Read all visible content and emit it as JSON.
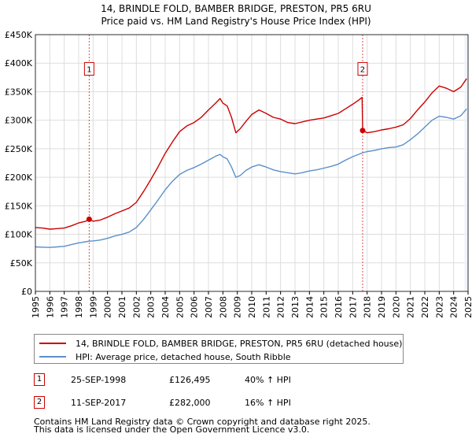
{
  "title": {
    "line1": "14, BRINDLE FOLD, BAMBER BRIDGE, PRESTON, PR5 6RU",
    "line2": "Price paid vs. HM Land Registry's House Price Index (HPI)"
  },
  "chart_data": {
    "type": "line",
    "title": "14, BRINDLE FOLD, BAMBER BRIDGE, PRESTON, PR5 6RU — Price paid vs. HM Land Registry's House Price Index (HPI)",
    "xlabel": "",
    "ylabel": "",
    "xlim": [
      1995,
      2025
    ],
    "ylim": [
      0,
      450000
    ],
    "grid": true,
    "x_ticks": [
      "1995",
      "1996",
      "1997",
      "1998",
      "1999",
      "2000",
      "2001",
      "2002",
      "2003",
      "2004",
      "2005",
      "2006",
      "2007",
      "2008",
      "2009",
      "2010",
      "2011",
      "2012",
      "2013",
      "2014",
      "2015",
      "2016",
      "2017",
      "2018",
      "2019",
      "2020",
      "2021",
      "2022",
      "2023",
      "2024",
      "2025"
    ],
    "y_ticks": [
      {
        "value": 0,
        "label": "£0"
      },
      {
        "value": 50000,
        "label": "£50K"
      },
      {
        "value": 100000,
        "label": "£100K"
      },
      {
        "value": 150000,
        "label": "£150K"
      },
      {
        "value": 200000,
        "label": "£200K"
      },
      {
        "value": 250000,
        "label": "£250K"
      },
      {
        "value": 300000,
        "label": "£300K"
      },
      {
        "value": 350000,
        "label": "£350K"
      },
      {
        "value": 400000,
        "label": "£400K"
      },
      {
        "value": 450000,
        "label": "£450K"
      }
    ],
    "series": [
      {
        "name": "14, BRINDLE FOLD, BAMBER BRIDGE, PRESTON, PR5 6RU (detached house)",
        "color": "#cc0000",
        "points": [
          [
            1995.0,
            112000
          ],
          [
            1995.5,
            111000
          ],
          [
            1996.0,
            109000
          ],
          [
            1996.5,
            110000
          ],
          [
            1997.0,
            111000
          ],
          [
            1997.5,
            115000
          ],
          [
            1998.0,
            120000
          ],
          [
            1998.5,
            123000
          ],
          [
            1998.73,
            126495
          ],
          [
            1999.0,
            123000
          ],
          [
            1999.5,
            125000
          ],
          [
            2000.0,
            130000
          ],
          [
            2000.5,
            136000
          ],
          [
            2001.0,
            141000
          ],
          [
            2001.5,
            146000
          ],
          [
            2002.0,
            156000
          ],
          [
            2002.5,
            175000
          ],
          [
            2003.0,
            196000
          ],
          [
            2003.5,
            218000
          ],
          [
            2004.0,
            242000
          ],
          [
            2004.5,
            262000
          ],
          [
            2005.0,
            280000
          ],
          [
            2005.5,
            290000
          ],
          [
            2006.0,
            296000
          ],
          [
            2006.5,
            305000
          ],
          [
            2007.0,
            318000
          ],
          [
            2007.5,
            330000
          ],
          [
            2007.8,
            338000
          ],
          [
            2008.0,
            330000
          ],
          [
            2008.3,
            325000
          ],
          [
            2008.6,
            305000
          ],
          [
            2008.9,
            278000
          ],
          [
            2009.2,
            285000
          ],
          [
            2009.6,
            298000
          ],
          [
            2010.0,
            310000
          ],
          [
            2010.5,
            318000
          ],
          [
            2011.0,
            312000
          ],
          [
            2011.5,
            305000
          ],
          [
            2012.0,
            302000
          ],
          [
            2012.5,
            296000
          ],
          [
            2013.0,
            294000
          ],
          [
            2013.5,
            297000
          ],
          [
            2014.0,
            300000
          ],
          [
            2014.5,
            302000
          ],
          [
            2015.0,
            304000
          ],
          [
            2015.5,
            308000
          ],
          [
            2016.0,
            312000
          ],
          [
            2016.5,
            320000
          ],
          [
            2017.0,
            328000
          ],
          [
            2017.4,
            335000
          ],
          [
            2017.65,
            340000
          ],
          [
            2017.69,
            282000
          ],
          [
            2018.0,
            278000
          ],
          [
            2018.5,
            280000
          ],
          [
            2019.0,
            283000
          ],
          [
            2019.5,
            285000
          ],
          [
            2020.0,
            288000
          ],
          [
            2020.5,
            292000
          ],
          [
            2021.0,
            303000
          ],
          [
            2021.5,
            318000
          ],
          [
            2022.0,
            332000
          ],
          [
            2022.5,
            348000
          ],
          [
            2023.0,
            360000
          ],
          [
            2023.5,
            356000
          ],
          [
            2024.0,
            350000
          ],
          [
            2024.5,
            358000
          ],
          [
            2024.9,
            373000
          ]
        ]
      },
      {
        "name": "HPI: Average price, detached house, South Ribble",
        "color": "#5b8fc9",
        "points": [
          [
            1995.0,
            78000
          ],
          [
            1995.5,
            77500
          ],
          [
            1996.0,
            77000
          ],
          [
            1996.5,
            78000
          ],
          [
            1997.0,
            79000
          ],
          [
            1997.5,
            82000
          ],
          [
            1998.0,
            85000
          ],
          [
            1998.5,
            87000
          ],
          [
            1998.73,
            88000
          ],
          [
            1999.0,
            88500
          ],
          [
            1999.5,
            90000
          ],
          [
            2000.0,
            93000
          ],
          [
            2000.5,
            97000
          ],
          [
            2001.0,
            100000
          ],
          [
            2001.5,
            104000
          ],
          [
            2002.0,
            112000
          ],
          [
            2002.5,
            126000
          ],
          [
            2003.0,
            143000
          ],
          [
            2003.5,
            160000
          ],
          [
            2004.0,
            178000
          ],
          [
            2004.5,
            193000
          ],
          [
            2005.0,
            205000
          ],
          [
            2005.5,
            212000
          ],
          [
            2006.0,
            217000
          ],
          [
            2006.5,
            223000
          ],
          [
            2007.0,
            230000
          ],
          [
            2007.5,
            237000
          ],
          [
            2007.8,
            240000
          ],
          [
            2008.0,
            236000
          ],
          [
            2008.3,
            232000
          ],
          [
            2008.6,
            218000
          ],
          [
            2008.9,
            200000
          ],
          [
            2009.2,
            203000
          ],
          [
            2009.6,
            212000
          ],
          [
            2010.0,
            218000
          ],
          [
            2010.5,
            222000
          ],
          [
            2011.0,
            218000
          ],
          [
            2011.5,
            213000
          ],
          [
            2012.0,
            210000
          ],
          [
            2012.5,
            208000
          ],
          [
            2013.0,
            206000
          ],
          [
            2013.5,
            208000
          ],
          [
            2014.0,
            211000
          ],
          [
            2014.5,
            213000
          ],
          [
            2015.0,
            216000
          ],
          [
            2015.5,
            219000
          ],
          [
            2016.0,
            223000
          ],
          [
            2016.5,
            230000
          ],
          [
            2017.0,
            236000
          ],
          [
            2017.5,
            241000
          ],
          [
            2017.69,
            243000
          ],
          [
            2018.0,
            245000
          ],
          [
            2018.5,
            247000
          ],
          [
            2019.0,
            250000
          ],
          [
            2019.5,
            252000
          ],
          [
            2020.0,
            253000
          ],
          [
            2020.5,
            257000
          ],
          [
            2021.0,
            266000
          ],
          [
            2021.5,
            276000
          ],
          [
            2022.0,
            288000
          ],
          [
            2022.5,
            300000
          ],
          [
            2023.0,
            307000
          ],
          [
            2023.5,
            305000
          ],
          [
            2024.0,
            302000
          ],
          [
            2024.5,
            308000
          ],
          [
            2024.9,
            320000
          ]
        ]
      }
    ],
    "sale_markers": [
      {
        "label": "1",
        "x": 1998.73,
        "y": 126495
      },
      {
        "label": "2",
        "x": 2017.69,
        "y": 282000
      }
    ],
    "marker_label_y": 390000
  },
  "legend": {
    "property_label": "14, BRINDLE FOLD, BAMBER BRIDGE, PRESTON, PR5 6RU (detached house)",
    "hpi_label": "HPI: Average price, detached house, South Ribble"
  },
  "sales": [
    {
      "num": "1",
      "date": "25-SEP-1998",
      "price": "£126,495",
      "hpi": "40% ↑ HPI"
    },
    {
      "num": "2",
      "date": "11-SEP-2017",
      "price": "£282,000",
      "hpi": "16% ↑ HPI"
    }
  ],
  "footer": {
    "line1": "Contains HM Land Registry data © Crown copyright and database right 2025.",
    "line2": "This data is licensed under the Open Government Licence v3.0."
  },
  "colors": {
    "property": "#cc0000",
    "hpi": "#5b8fc9",
    "grid": "#dddddd",
    "plot_bg": "#eef2f9"
  }
}
